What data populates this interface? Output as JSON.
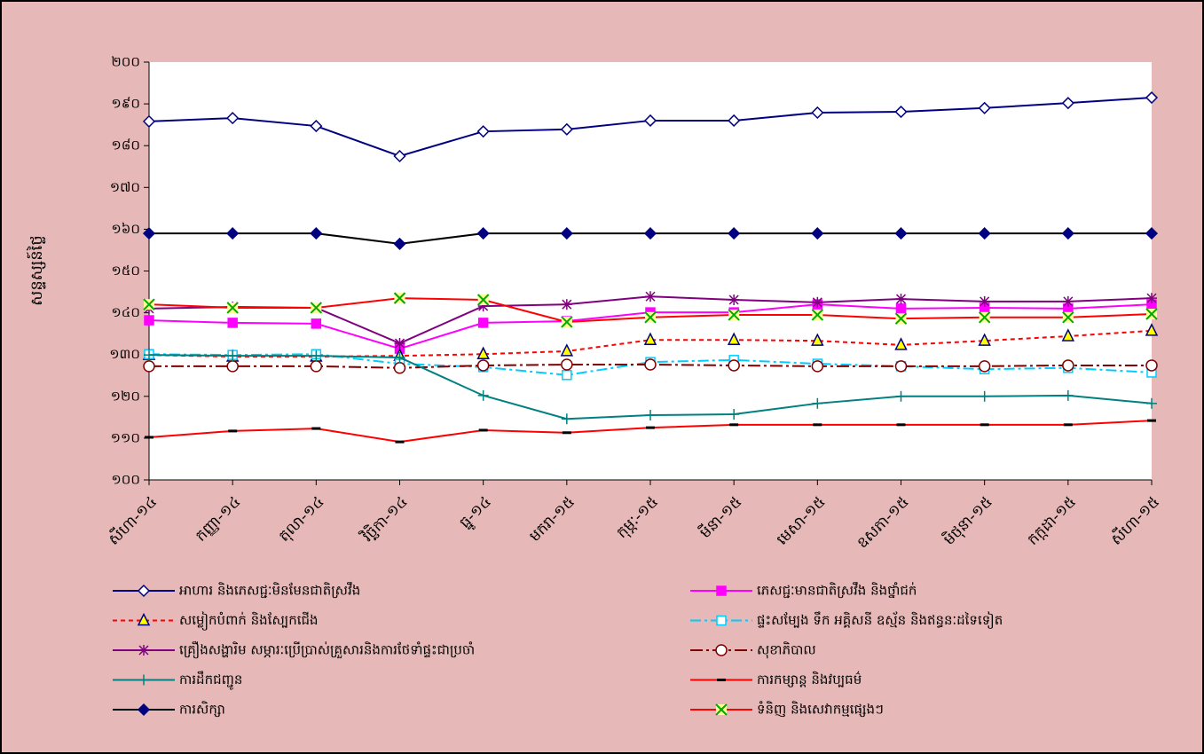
{
  "chart_data": {
    "type": "line",
    "y_label": "សន្ទស្សន៍ថ្លៃ",
    "categories": [
      "សីហា-១៤",
      "កញ្ញា-១៤",
      "តុលា-១៤",
      "វិច្ឆិកា-១៤",
      "ធ្នូ-១៤",
      "មករា-១៥",
      "កុម្ភៈ-១៥",
      "មីនា-១៥",
      "មេសា-១៥",
      "ឧសភា-១៥",
      "មិថុនា-១៥",
      "កក្កដា-១៥",
      "សីហា-១៥"
    ],
    "ylim": [
      100,
      200
    ],
    "yticks": [
      {
        "value": 100,
        "label": "១០០"
      },
      {
        "value": 110,
        "label": "១១០"
      },
      {
        "value": 120,
        "label": "១២០"
      },
      {
        "value": 130,
        "label": "១៣០"
      },
      {
        "value": 140,
        "label": "១៤០"
      },
      {
        "value": 150,
        "label": "១៥០"
      },
      {
        "value": 160,
        "label": "១៦០"
      },
      {
        "value": 170,
        "label": "១៧០"
      },
      {
        "value": 180,
        "label": "១៨០"
      },
      {
        "value": 190,
        "label": "១៩០"
      },
      {
        "value": 200,
        "label": "២០០"
      }
    ],
    "grid": false,
    "series": [
      {
        "name": "អាហារ និងភេសជ្ជៈមិនមែនជាតិស្រវឹង",
        "color": "#000080",
        "dash": "",
        "marker": "diamond",
        "marker_color": "#000080",
        "marker_fill": "#ffffff",
        "values": [
          185.8,
          186.6,
          184.7,
          177.5,
          183.4,
          183.9,
          186.0,
          186.0,
          187.9,
          188.1,
          189.0,
          190.2,
          191.5
        ]
      },
      {
        "name": "ភេសជ្ជៈមានជាតិស្រវឹង និងថ្នាំជក់",
        "color": "#ff00ff",
        "dash": "",
        "marker": "square",
        "marker_color": "#ff00ff",
        "marker_fill": "#ff00ff",
        "values": [
          138.2,
          137.6,
          137.4,
          131.4,
          137.6,
          138.0,
          140.1,
          140.1,
          142.0,
          141.0,
          141.2,
          141.0,
          142.0
        ]
      },
      {
        "name": "សម្លៀកបំពាក់ និងស្បែកជើង",
        "color": "#ff0000",
        "dash": "5,4",
        "marker": "triangle",
        "marker_color": "#000080",
        "marker_fill": "#ffff00",
        "values": [
          129.9,
          129.5,
          129.5,
          129.7,
          130.1,
          130.8,
          133.5,
          133.5,
          133.3,
          132.3,
          133.3,
          134.4,
          135.7
        ]
      },
      {
        "name": "ផ្ទះសម្បែង ទឹក អគ្គិសនី ឧស្ម័ន និងឥន្ធនៈដទៃទៀត",
        "color": "#00ccff",
        "dash": "12,4,3,4",
        "marker": "square",
        "marker_color": "#00ccff",
        "marker_fill": "#ffffff",
        "values": [
          130.1,
          129.9,
          130.1,
          127.8,
          127.0,
          125.1,
          128.2,
          128.7,
          127.8,
          127.2,
          126.5,
          126.8,
          125.7
        ]
      },
      {
        "name": "គ្រឿងសង្ហារិម សម្ភារៈប្រើប្រាស់គ្រួសារនិងការថែទាំផ្ទះជាប្រចាំ",
        "color": "#800080",
        "dash": "",
        "marker": "star",
        "marker_color": "#800080",
        "marker_fill": "none",
        "values": [
          141.0,
          141.4,
          141.2,
          132.7,
          141.6,
          142.0,
          143.9,
          143.1,
          142.5,
          143.3,
          142.7,
          142.7,
          143.5
        ]
      },
      {
        "name": "សុខាភិបាល",
        "color": "#800000",
        "dash": "14,4,3,4",
        "marker": "circle",
        "marker_color": "#800000",
        "marker_fill": "#ffffff",
        "values": [
          127.2,
          127.2,
          127.2,
          126.8,
          127.4,
          127.6,
          127.6,
          127.4,
          127.2,
          127.2,
          127.2,
          127.4,
          127.4
        ]
      },
      {
        "name": "ការដឹកជញ្ជូន",
        "color": "#008080",
        "dash": "",
        "marker": "plus",
        "marker_color": "#008080",
        "marker_fill": "none",
        "values": [
          129.9,
          129.7,
          129.7,
          129.3,
          120.2,
          114.6,
          115.5,
          115.7,
          118.3,
          120.0,
          120.0,
          120.2,
          118.3
        ]
      },
      {
        "name": "ការកម្សាន្ត និងវប្បធម៌",
        "color": "#ff0000",
        "dash": "",
        "marker": "dash",
        "marker_color": "#000000",
        "marker_fill": "none",
        "values": [
          110.2,
          111.7,
          112.3,
          109.1,
          111.9,
          111.3,
          112.5,
          113.2,
          113.2,
          113.2,
          113.2,
          113.2,
          114.2
        ]
      },
      {
        "name": "ការសិក្សា",
        "color": "#000000",
        "dash": "",
        "marker": "diamond",
        "marker_color": "#000080",
        "marker_fill": "#000080",
        "values": [
          159.0,
          159.0,
          159.0,
          156.5,
          159.0,
          159.0,
          159.0,
          159.0,
          159.0,
          159.0,
          159.0,
          159.0,
          159.0
        ]
      },
      {
        "name": "ទំនិញ និងសេវាកម្មផ្សេងៗ",
        "color": "#ff0000",
        "dash": "",
        "marker": "x",
        "marker_color": "#00aa00",
        "marker_fill": "#ffff99",
        "values": [
          142.0,
          141.2,
          141.2,
          143.5,
          143.1,
          137.8,
          138.9,
          139.5,
          139.5,
          138.6,
          138.9,
          138.9,
          139.7
        ]
      }
    ]
  }
}
